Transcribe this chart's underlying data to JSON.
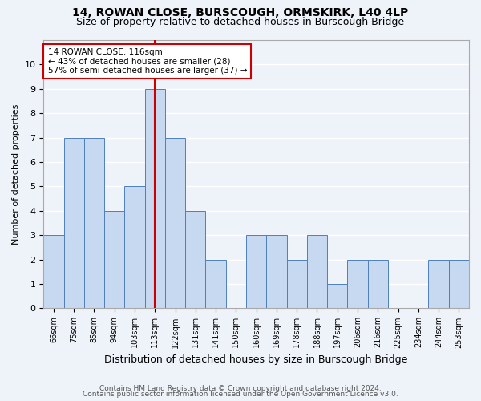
{
  "title1": "14, ROWAN CLOSE, BURSCOUGH, ORMSKIRK, L40 4LP",
  "title2": "Size of property relative to detached houses in Burscough Bridge",
  "xlabel": "Distribution of detached houses by size in Burscough Bridge",
  "ylabel": "Number of detached properties",
  "categories": [
    "66sqm",
    "75sqm",
    "85sqm",
    "94sqm",
    "103sqm",
    "113sqm",
    "122sqm",
    "131sqm",
    "141sqm",
    "150sqm",
    "160sqm",
    "169sqm",
    "178sqm",
    "188sqm",
    "197sqm",
    "206sqm",
    "216sqm",
    "225sqm",
    "234sqm",
    "244sqm",
    "253sqm"
  ],
  "values": [
    3,
    7,
    7,
    4,
    5,
    9,
    7,
    4,
    2,
    0,
    3,
    3,
    2,
    3,
    1,
    2,
    2,
    0,
    0,
    2,
    2
  ],
  "bar_color": "#c6d9f0",
  "bar_edge_color": "#4e7fbd",
  "highlight_index": 5,
  "highlight_line_color": "#cc0000",
  "annotation_line1": "14 ROWAN CLOSE: 116sqm",
  "annotation_line2": "← 43% of detached houses are smaller (28)",
  "annotation_line3": "57% of semi-detached houses are larger (37) →",
  "annotation_box_color": "#ffffff",
  "annotation_box_edge_color": "#cc0000",
  "ylim": [
    0,
    11
  ],
  "yticks": [
    0,
    1,
    2,
    3,
    4,
    5,
    6,
    7,
    8,
    9,
    10
  ],
  "footer1": "Contains HM Land Registry data © Crown copyright and database right 2024.",
  "footer2": "Contains public sector information licensed under the Open Government Licence v3.0.",
  "background_color": "#eef2f9",
  "grid_color": "#ffffff",
  "title1_fontsize": 10,
  "title2_fontsize": 9,
  "ylabel_fontsize": 8,
  "xlabel_fontsize": 9,
  "tick_fontsize": 7,
  "annotation_fontsize": 7.5,
  "footer_fontsize": 6.5
}
